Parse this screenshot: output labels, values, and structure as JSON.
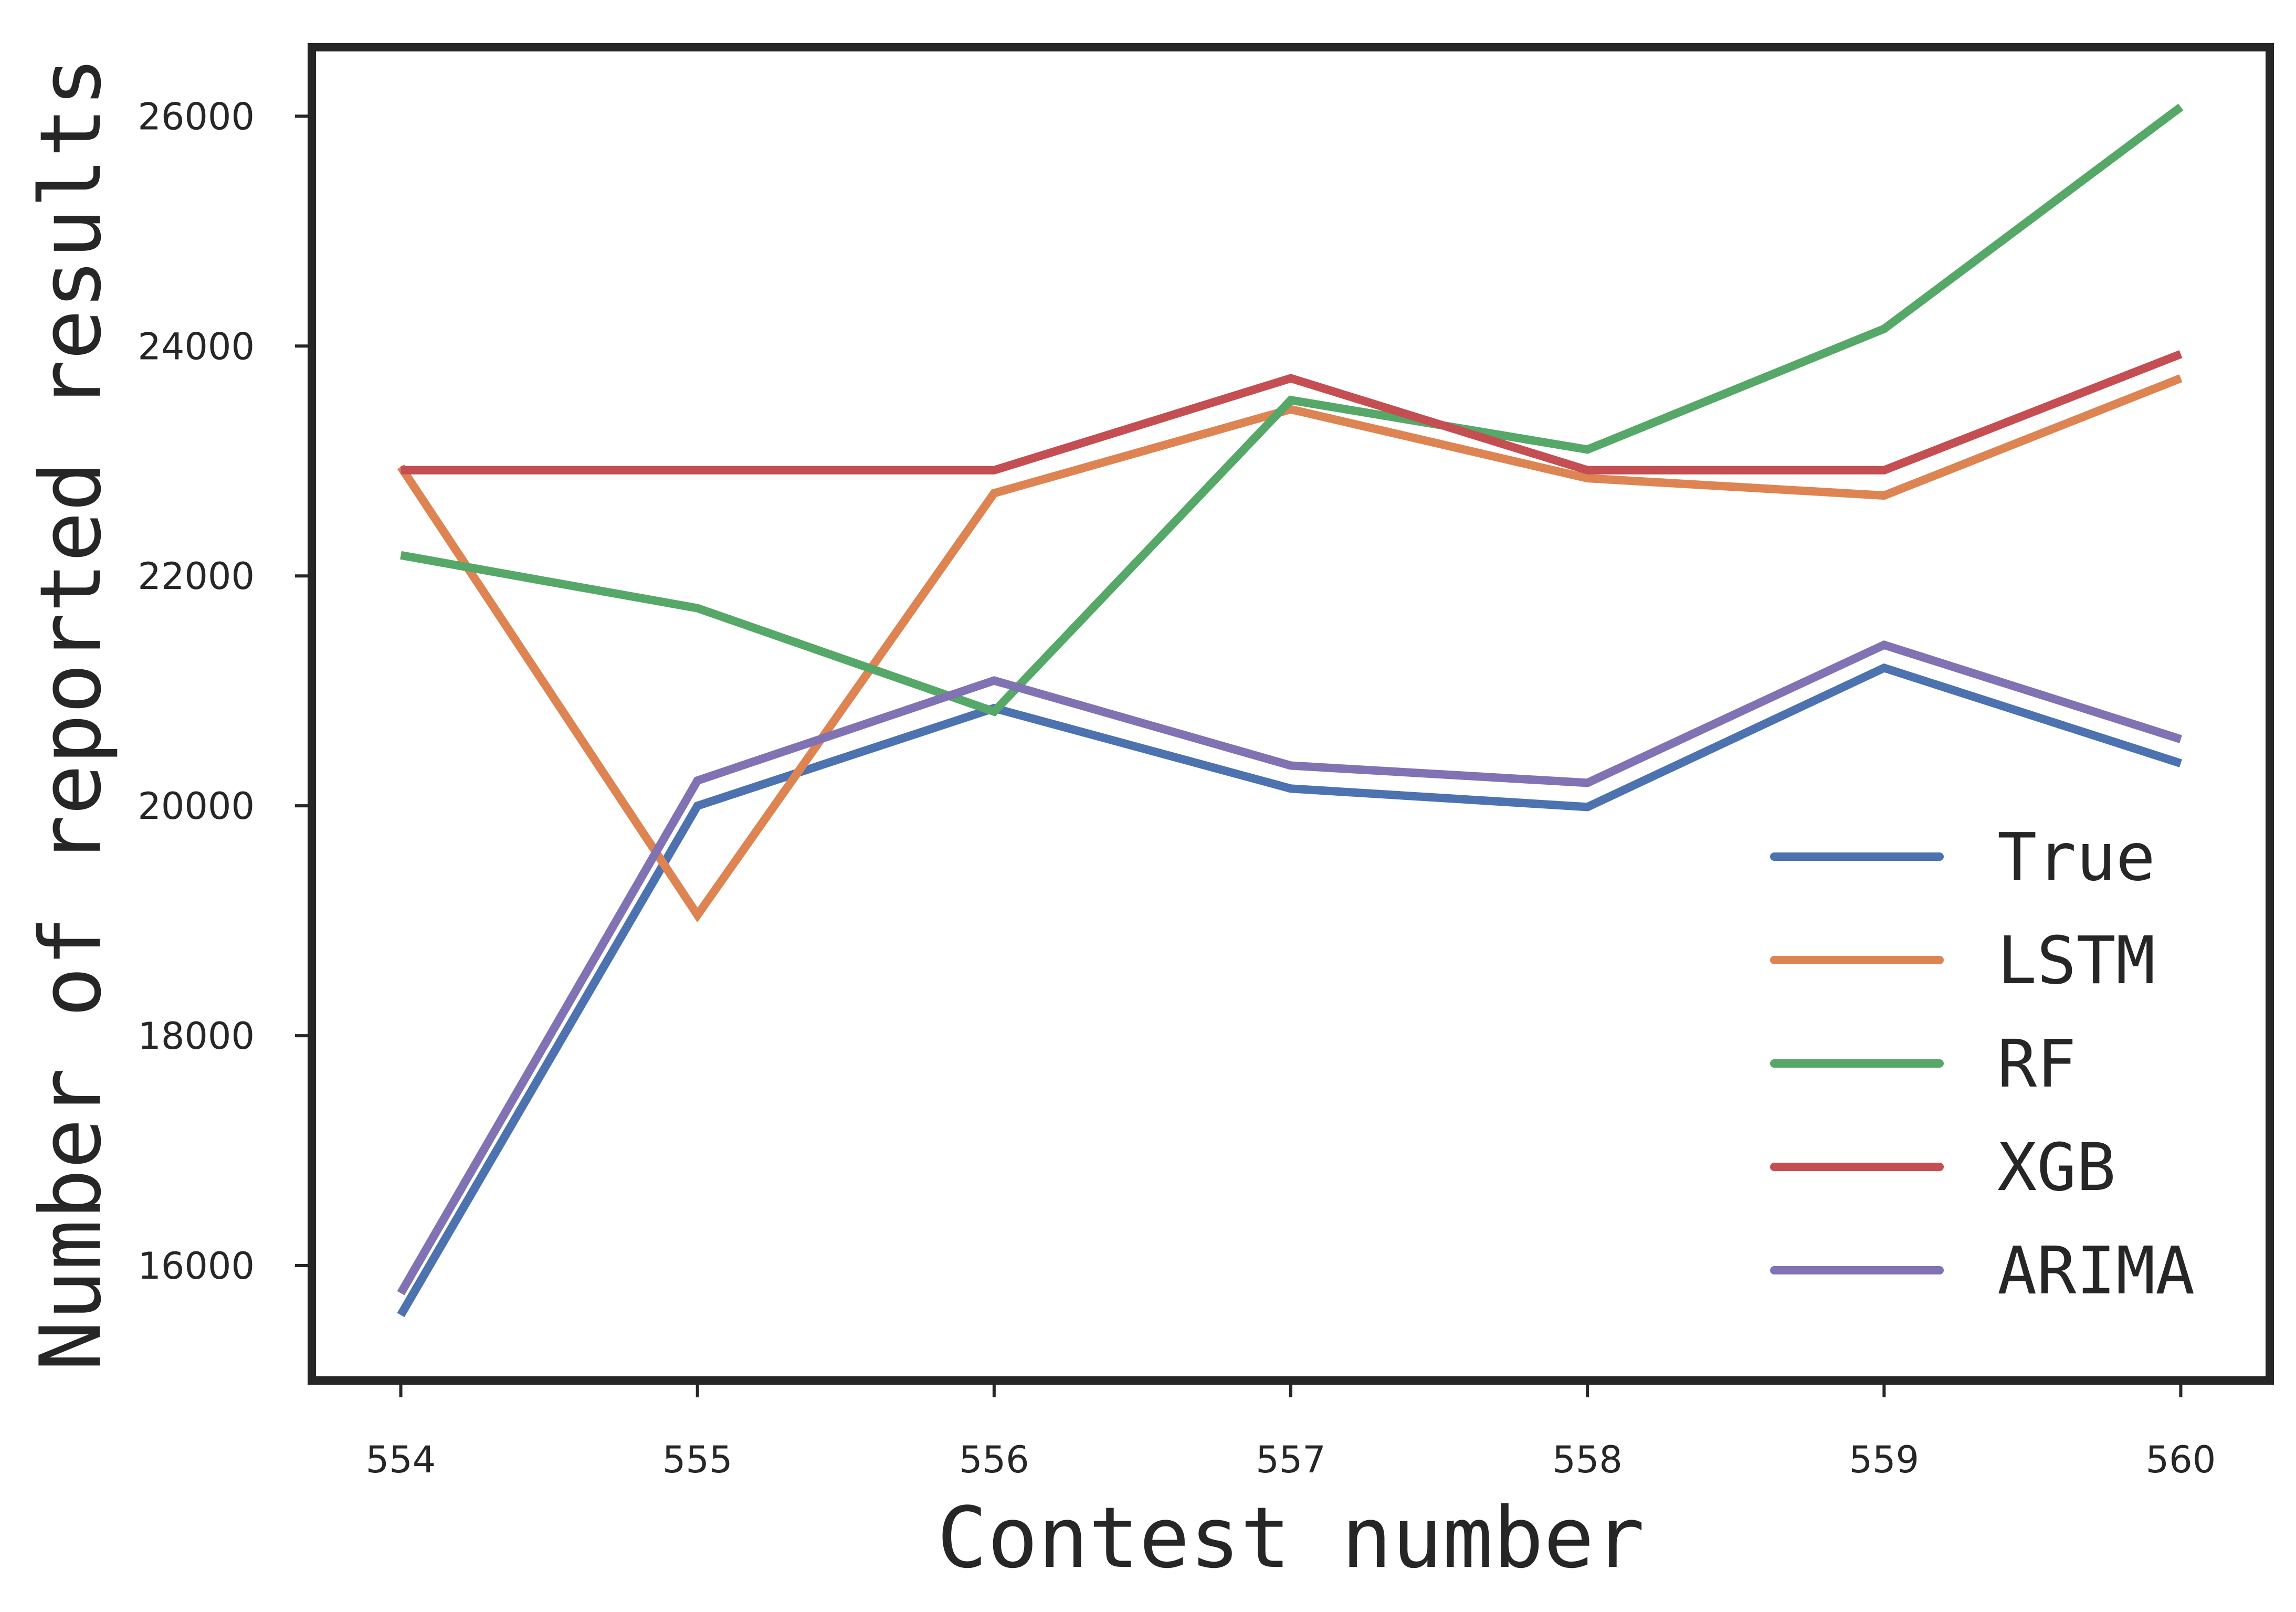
{
  "chart_data": {
    "type": "line",
    "title": "",
    "xlabel": "Contest number",
    "ylabel": "Number of reported results",
    "x": [
      554,
      555,
      556,
      557,
      558,
      559,
      560
    ],
    "x_tick_labels": [
      "554",
      "555",
      "556",
      "557",
      "558",
      "559",
      "560"
    ],
    "y_ticks": [
      16000,
      18000,
      20000,
      22000,
      24000,
      26000
    ],
    "y_tick_labels": [
      "16000",
      "18000",
      "20000",
      "22000",
      "24000",
      "26000"
    ],
    "xlim": [
      553.7,
      560.3
    ],
    "ylim": [
      15000,
      26600
    ],
    "grid": false,
    "legend_position": "lower-right",
    "series": [
      {
        "name": "True",
        "color": "#4c72b0",
        "values": [
          15570,
          20000,
          20850,
          20150,
          19990,
          21200,
          20370
        ]
      },
      {
        "name": "LSTM",
        "color": "#dd8452",
        "values": [
          22950,
          19050,
          22720,
          23450,
          22850,
          22700,
          23720
        ]
      },
      {
        "name": "RF",
        "color": "#55a868",
        "values": [
          22180,
          21720,
          20820,
          23530,
          23100,
          24150,
          26080
        ]
      },
      {
        "name": "XGB",
        "color": "#c44e52",
        "values": [
          22920,
          22920,
          22920,
          23720,
          22920,
          22920,
          23930
        ]
      },
      {
        "name": "ARIMA",
        "color": "#8172b3",
        "values": [
          15760,
          20220,
          21090,
          20350,
          20200,
          21400,
          20580
        ]
      }
    ]
  }
}
